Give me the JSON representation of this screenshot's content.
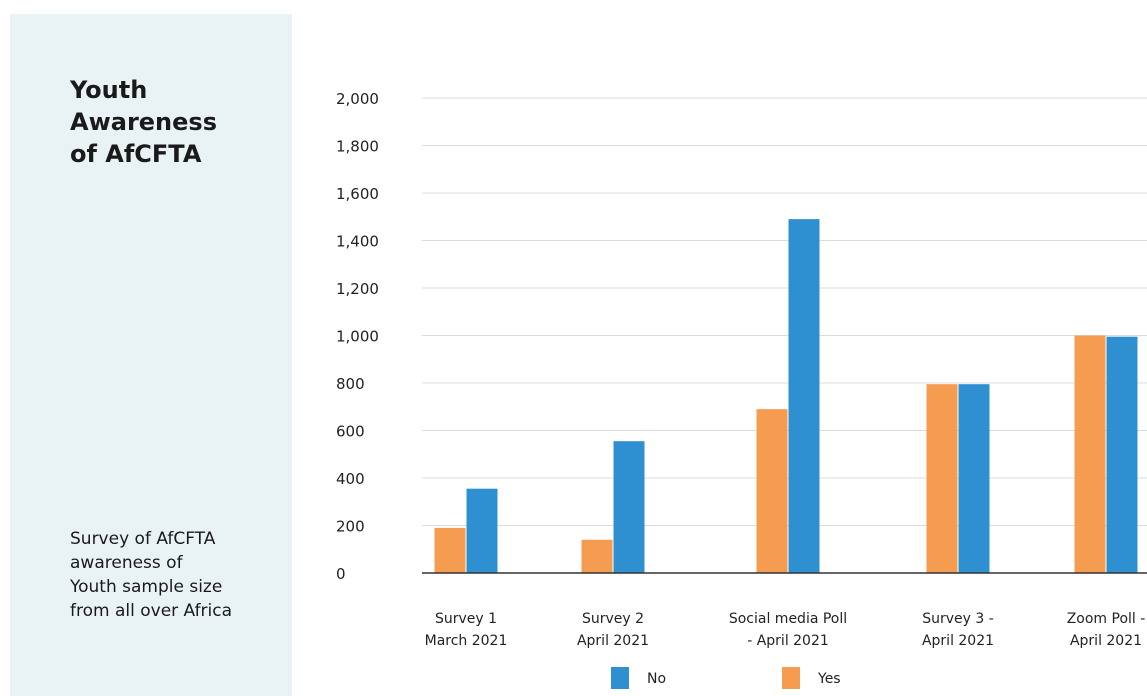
{
  "side_panel": {
    "title_lines": [
      "Youth",
      "Awareness",
      "of AfCFTA"
    ],
    "description_lines": [
      "Survey of AfCFTA",
      "awareness of",
      "Youth sample size",
      "from all over Africa"
    ]
  },
  "chart_data": {
    "type": "bar",
    "title": "Youth Awareness of AfCFTA",
    "categories": [
      [
        "Survey 1",
        "March 2021"
      ],
      [
        "Survey 2",
        "April 2021"
      ],
      [
        "Social media Poll",
        "- April 2021"
      ],
      [
        "Survey 3 -",
        "April 2021"
      ],
      [
        "Zoom Poll -",
        "April 2021"
      ]
    ],
    "series": [
      {
        "name": "Yes",
        "color": "#f59c50",
        "values": [
          190,
          140,
          690,
          795,
          1000
        ]
      },
      {
        "name": "No",
        "color": "#2f90d1",
        "values": [
          355,
          555,
          1490,
          795,
          995
        ]
      }
    ],
    "legend_order": [
      "No",
      "Yes"
    ],
    "legend_position": "bottom",
    "yticks": [
      "0",
      "200",
      "400",
      "600",
      "800",
      "1,000",
      "1,200",
      "1,400",
      "1,600",
      "1,800",
      "2,000"
    ],
    "ylim": [
      0,
      2000
    ],
    "xlabel": "",
    "ylabel": "",
    "grid": true
  }
}
